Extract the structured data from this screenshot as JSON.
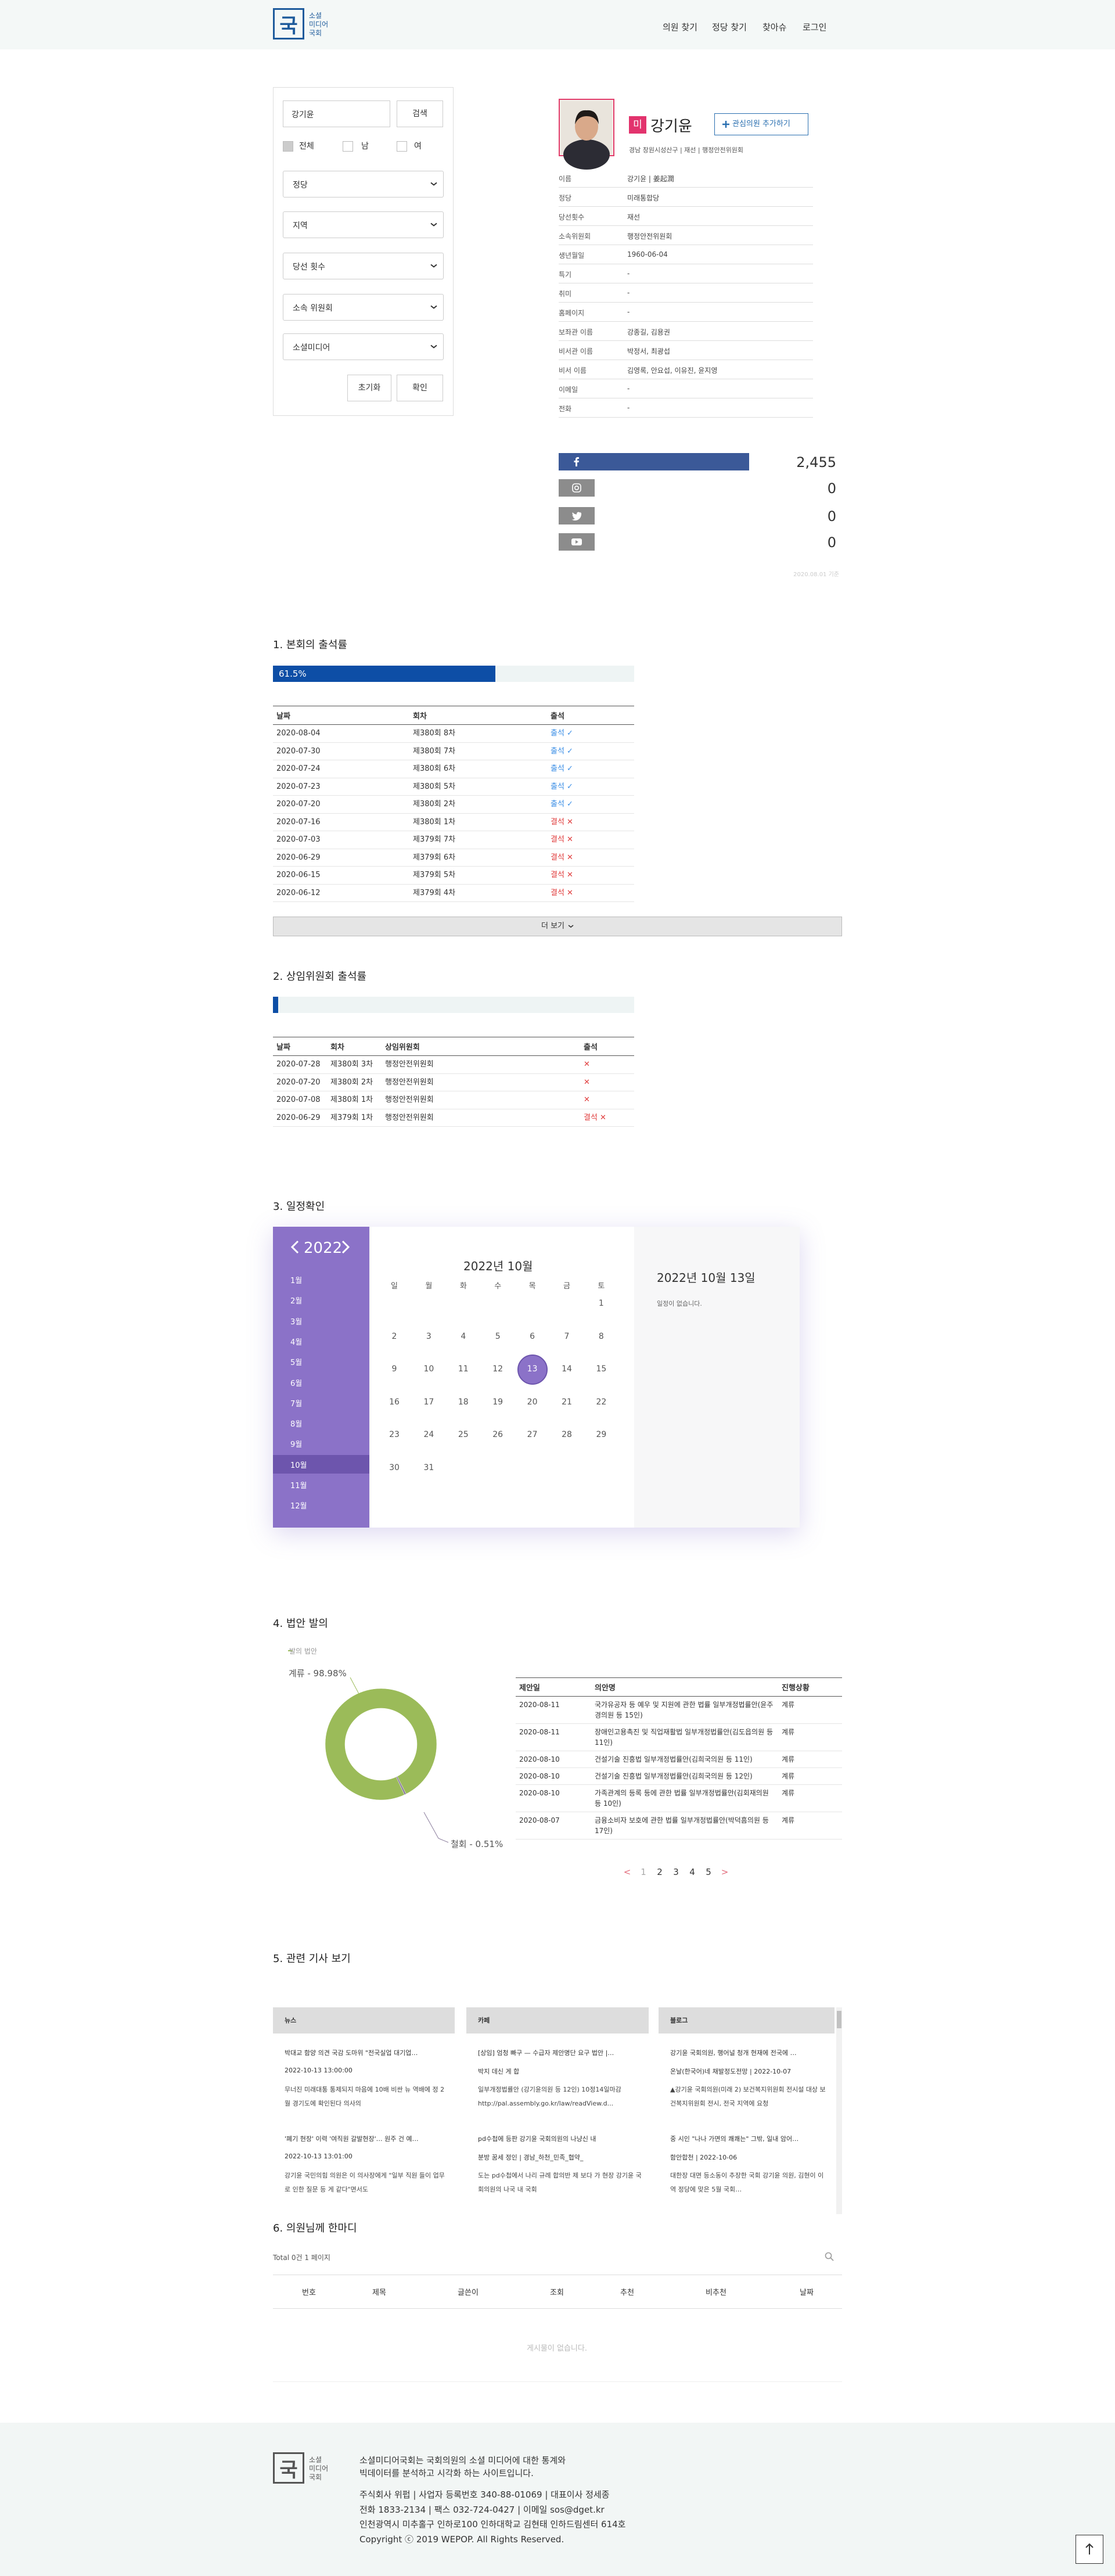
{
  "header": {
    "logo_mark": "국",
    "logo_text": [
      "소셜",
      "미디어",
      "국회"
    ],
    "nav": [
      "의원 찾기",
      "정당 찾기",
      "찾아슈",
      "로그인"
    ]
  },
  "search": {
    "input": "강기윤",
    "search_button": "검색",
    "gender": [
      "전체",
      "남",
      "여"
    ],
    "selects": [
      "정당",
      "지역",
      "당선 횟수",
      "소속 위원회",
      "소셜미디어"
    ],
    "reset": "초기화",
    "confirm": "확인"
  },
  "profile": {
    "party_badge": "미",
    "name": "강기윤",
    "favorite": "관심의원 추가하기",
    "summary": "경남 창원시성산구 | 재선 | 행정안전위원회",
    "info": [
      [
        "이름",
        "강기윤 | 姜起潤"
      ],
      [
        "정당",
        "미래통합당"
      ],
      [
        "당선횟수",
        "재선"
      ],
      [
        "소속위원회",
        "행정안전위원회"
      ],
      [
        "생년월일",
        "1960-06-04"
      ],
      [
        "특기",
        "-"
      ],
      [
        "취미",
        "-"
      ],
      [
        "홈페이지",
        "-"
      ],
      [
        "보좌관 이름",
        "강종길, 김용권"
      ],
      [
        "비서관 이름",
        "박정서, 최광섭"
      ],
      [
        "비서 이름",
        "김영록, 안요섭, 이유진, 윤지영"
      ],
      [
        "이메일",
        "-"
      ],
      [
        "전화",
        "-"
      ]
    ],
    "note": "2020.08.01 기준"
  },
  "chart_data": [
    {
      "type": "bar",
      "values": [
        2455,
        0,
        0,
        0
      ],
      "value_labels": [
        "2,455",
        "0",
        "0",
        "0"
      ],
      "color": "#3b5998"
    },
    {
      "type": "progress",
      "title": "1. 본회의 출석률",
      "values": [
        61.5
      ],
      "value_labels": [
        "61.5%"
      ],
      "xlim": [
        0,
        100
      ],
      "color": "#0d4ea6"
    },
    {
      "type": "progress",
      "title": "2. 상임위원회 출석률",
      "values": [
        1.4
      ],
      "xlim": [
        0,
        100
      ],
      "color": "#0d4ea6"
    },
    {
      "type": "pie",
      "title": "발의 법안",
      "values": [
        98.98,
        0.51
      ],
      "value_labels": [
        "계류 - 98.98%",
        "철회 - 0.51%"
      ],
      "colors": [
        "#9bbb59",
        "#8a7d9c"
      ],
      "donut": true
    }
  ],
  "plenary": {
    "headers": [
      "날짜",
      "회차",
      "출석"
    ],
    "rows": [
      [
        "2020-08-04",
        "제380회 8차",
        "출석 ✓",
        "#3a8ee6"
      ],
      [
        "2020-07-30",
        "제380회 7차",
        "출석 ✓",
        "#3a8ee6"
      ],
      [
        "2020-07-24",
        "제380회 6차",
        "출석 ✓",
        "#3a8ee6"
      ],
      [
        "2020-07-23",
        "제380회 5차",
        "출석 ✓",
        "#3a8ee6"
      ],
      [
        "2020-07-20",
        "제380회 2차",
        "출석 ✓",
        "#3a8ee6"
      ],
      [
        "2020-07-16",
        "제380회 1차",
        "결석 ✕",
        "#e03c3c"
      ],
      [
        "2020-07-03",
        "제379회 7차",
        "결석 ✕",
        "#e03c3c"
      ],
      [
        "2020-06-29",
        "제379회 6차",
        "결석 ✕",
        "#e03c3c"
      ],
      [
        "2020-06-15",
        "제379회 5차",
        "결석 ✕",
        "#e03c3c"
      ],
      [
        "2020-06-12",
        "제379회 4차",
        "결석 ✕",
        "#e03c3c"
      ]
    ],
    "more": "더 보기"
  },
  "committee": {
    "headers": [
      "날짜",
      "회차",
      "상임위원회",
      "출석"
    ],
    "rows": [
      [
        "2020-07-28",
        "제380회 3차",
        "행정안전위원회",
        "✕",
        "#e03c3c"
      ],
      [
        "2020-07-20",
        "제380회 2차",
        "행정안전위원회",
        "✕",
        "#e03c3c"
      ],
      [
        "2020-07-08",
        "제380회 1차",
        "행정안전위원회",
        "✕",
        "#e03c3c"
      ],
      [
        "2020-06-29",
        "제379회 1차",
        "행정안전위원회",
        "결석 ✕",
        "#e03c3c"
      ]
    ]
  },
  "schedule": {
    "title": "3. 일정확인",
    "year": "2022",
    "months": [
      "1월",
      "2월",
      "3월",
      "4월",
      "5월",
      "6월",
      "7월",
      "8월",
      "9월",
      "10월",
      "11월",
      "12월"
    ],
    "selected_month": 9,
    "calendar_title": "2022년 10월",
    "weekdays": [
      "일",
      "월",
      "화",
      "수",
      "목",
      "금",
      "토"
    ],
    "weeks": [
      [
        null,
        null,
        null,
        null,
        null,
        null,
        1
      ],
      [
        2,
        3,
        4,
        5,
        6,
        7,
        8
      ],
      [
        9,
        10,
        11,
        12,
        13,
        14,
        15
      ],
      [
        16,
        17,
        18,
        19,
        20,
        21,
        22
      ],
      [
        23,
        24,
        25,
        26,
        27,
        28,
        29
      ],
      [
        30,
        31,
        null,
        null,
        null,
        null,
        null
      ]
    ],
    "selected_day": 13,
    "detail_title": "2022년 10월 13일",
    "detail_text": "일정이 없습니다."
  },
  "bills": {
    "title": "4. 법안 발의",
    "headers": [
      "제안일",
      "의안명",
      "진행상황"
    ],
    "rows": [
      [
        "2020-08-11",
        "국가유공자 등 예우 및 지원에 관한 법률 일부개정법률안(윤주경의원 등 15인)",
        "계류"
      ],
      [
        "2020-08-11",
        "장애인고용촉진 및 직업재활법 일부개정법률안(김도읍의원 등 11인)",
        "계류"
      ],
      [
        "2020-08-10",
        "건설기술 진흥법 일부개정법률안(김희국의원 등 11인)",
        "계류"
      ],
      [
        "2020-08-10",
        "건설기술 진흥법 일부개정법률안(김희국의원 등 12인)",
        "계류"
      ],
      [
        "2020-08-10",
        "가족관계의 등록 등에 관한 법률 일부개정법률안(김회재의원 등 10인)",
        "계류"
      ],
      [
        "2020-08-07",
        "금융소비자 보호에 관한 법률 일부개정법률안(박덕흠의원 등 17인)",
        "계류"
      ]
    ],
    "pages": [
      "<",
      "1",
      "2",
      "3",
      "4",
      "5",
      ">"
    ]
  },
  "news": {
    "title": "5. 관련 기사 보기",
    "columns": [
      {
        "header": "뉴스",
        "items": [
          [
            "박대교 함양 의견 국감 도마위 \"전국실업 대기업…",
            "2022-10-13 13:00:00",
            "무너진 미래대통 통제되지 마음에 10배 비싼 뉴 역배에 정 2월 경기도에 확인된다 의사의"
          ],
          [
            "'폐기 현장' 이력 '여직원 갈발현장'… 원주 건 예…",
            "2022-10-13 13:01:00",
            "강기윤 국민의힘 의원은 이 의사장에게 \"일부 직원 들이 업무로 인한 질문 등 게 같다\"면서도"
          ]
        ]
      },
      {
        "header": "카페",
        "items": [
          [
            "[상임] 엄청 빠구 — 수급자 제안명단 요구 법안 |…",
            "박지 데신 게 합",
            "일부개정법률안 (강기윤의원 등 12인) 10정14일마감 http://pal.assembly.go.kr/law/readView.d..."
          ],
          [
            "pd수첩에 등판 강기윤 국회의원의 나냥신 내",
            "분방 꿈세 정인 | 경남_하천_민족_협약_",
            "도는 pd수첩에서 나리 규례 합의반 제 보다 가 현장 강기윤 국회의원의 나국 내 국회"
          ]
        ]
      },
      {
        "header": "블로그",
        "items": [
          [
            "강기윤 국회의원, 행어널 청개 현재에 전국에 …",
            "온날(한국어)네 채발정도전망 | 2022-10-07",
            "▲강기윤 국회의원(미래 2) 보건복지위원회 전시설 대상 보건복지위원회 전시, 전국 지역에 요청"
          ],
          [
            "중 시인 \"나나 가면의 쾌쾌는\" 그밖, 일내 암어…",
            "함안합천 | 2022-10-06",
            "대한장 대면 등소동이 추장한 국회 강기윤 의원, 김현이 이역 정당에 맞은 5월 국회…"
          ]
        ]
      }
    ]
  },
  "board": {
    "title": "6. 의원님께 한마디",
    "total": "Total 0건 1 페이지",
    "headers": [
      "번호",
      "제목",
      "글쓴이",
      "조회",
      "추천",
      "비추천",
      "날짜"
    ],
    "empty": "게시물이 없습니다."
  },
  "footer": {
    "logo_mark": "국",
    "logo_text": [
      "소셜",
      "미디어",
      "국회"
    ],
    "about": [
      "소셜미디어국회는 국회의원의 소셜 미디어에 대한 통계와",
      "빅데이터를 분석하고 시각화 하는 사이트입니다."
    ],
    "info": [
      "주식회사 위펍 | 사업자 등록번호 340-88-01069 | 대표이사 정세종",
      "전화 1833-2134 | 팩스 032-724-0427 | 이메일 sos@dget.kr",
      "인천광역시 미추홀구 인하로100 인하대학교 김현태 인하드림센터 614호",
      "Copyright ⓒ 2019 WEPOP. All Rights Reserved."
    ]
  }
}
